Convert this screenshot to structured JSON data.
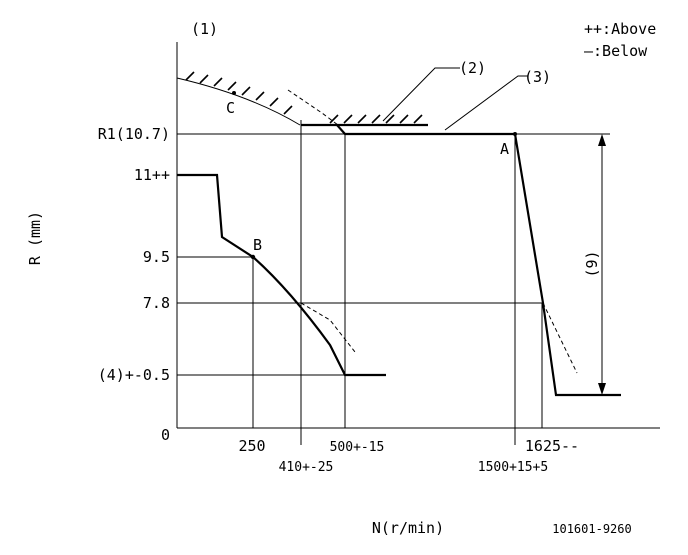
{
  "legend": {
    "above": "++:Above",
    "below": "—:Below"
  },
  "labels": {
    "ref1": "(1)",
    "ref2": "(2)",
    "ref3": "(3)",
    "point_a": "A",
    "point_b": "B",
    "point_c": "C",
    "ref9": "(9)"
  },
  "y_axis": {
    "title": "R (mm)",
    "ticks": [
      "R1(10.7)",
      "11++",
      "9.5",
      "7.8",
      "(4)+-0.5",
      "0"
    ]
  },
  "x_axis": {
    "title": "N(r/min)",
    "ticks": [
      "250",
      "410+-25",
      "500+-15",
      "1500+15+5",
      "1625--"
    ]
  },
  "drawing_id": "101601-9260"
}
